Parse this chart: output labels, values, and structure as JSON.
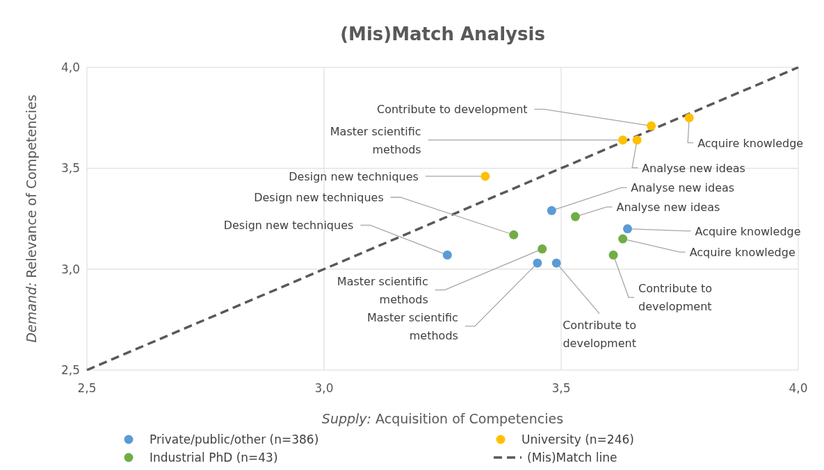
{
  "chart_data": {
    "type": "scatter",
    "title": "(Mis)Match Analysis",
    "xlabel": "Supply: Acquisition of Competencies",
    "ylabel": "Demand: Relevance of Competencies",
    "xlim": [
      2.5,
      4.0
    ],
    "ylim": [
      2.5,
      4.0
    ],
    "xticks": [
      {
        "value": 2.5,
        "label": "2,5"
      },
      {
        "value": 3.0,
        "label": "3,0"
      },
      {
        "value": 3.5,
        "label": "3,5"
      },
      {
        "value": 4.0,
        "label": "4,0"
      }
    ],
    "yticks": [
      {
        "value": 2.5,
        "label": "2,5"
      },
      {
        "value": 3.0,
        "label": "3,0"
      },
      {
        "value": 3.5,
        "label": "3,5"
      },
      {
        "value": 4.0,
        "label": "4,0"
      }
    ],
    "grid": true,
    "legend": "bottom",
    "marker": "circle",
    "series": [
      {
        "name": "Private/public/other (n=386)",
        "color": "#5b9bd5",
        "x": [
          3.26,
          3.48,
          3.64,
          3.45,
          3.49
        ],
        "values": [
          3.07,
          3.29,
          3.2,
          3.03,
          3.03
        ]
      },
      {
        "name": "University (n=246)",
        "color": "#ffc000",
        "x": [
          3.34,
          3.63,
          3.66,
          3.69,
          3.77
        ],
        "values": [
          3.46,
          3.64,
          3.64,
          3.71,
          3.75
        ]
      },
      {
        "name": "Industrial PhD (n=43)",
        "color": "#70ad47",
        "x": [
          3.4,
          3.53,
          3.46,
          3.63,
          3.61
        ],
        "values": [
          3.17,
          3.26,
          3.1,
          3.15,
          3.07
        ]
      },
      {
        "name": "(Mis)Match line",
        "type": "line",
        "color": "#595959",
        "line_style": "dashed",
        "marker": "none",
        "x": [
          2.5,
          4.0
        ],
        "values": [
          2.5,
          4.0
        ]
      }
    ],
    "annotations": [
      {
        "text": "Contribute to development",
        "x": 3.69,
        "y": 3.71
      },
      {
        "text": "Acquire knowledge",
        "x": 3.77,
        "y": 3.75
      },
      {
        "text": "Master scientific methods",
        "x": 3.63,
        "y": 3.64
      },
      {
        "text": "Analyse new ideas",
        "x": 3.66,
        "y": 3.64
      },
      {
        "text": "Design new techniques",
        "x": 3.34,
        "y": 3.46
      },
      {
        "text": "Analyse new ideas",
        "x": 3.48,
        "y": 3.29
      },
      {
        "text": "Analyse new ideas",
        "x": 3.53,
        "y": 3.26
      },
      {
        "text": "Design new techniques",
        "x": 3.4,
        "y": 3.17
      },
      {
        "text": "Design new techniques",
        "x": 3.26,
        "y": 3.07
      },
      {
        "text": "Acquire knowledge",
        "x": 3.64,
        "y": 3.2
      },
      {
        "text": "Acquire knowledge",
        "x": 3.63,
        "y": 3.15
      },
      {
        "text": "Master scientific methods",
        "x": 3.46,
        "y": 3.1
      },
      {
        "text": "Master scientific methods",
        "x": 3.45,
        "y": 3.03
      },
      {
        "text": "Contribute to development",
        "x": 3.49,
        "y": 3.03
      },
      {
        "text": "Contribute to development",
        "x": 3.61,
        "y": 3.07
      }
    ]
  }
}
